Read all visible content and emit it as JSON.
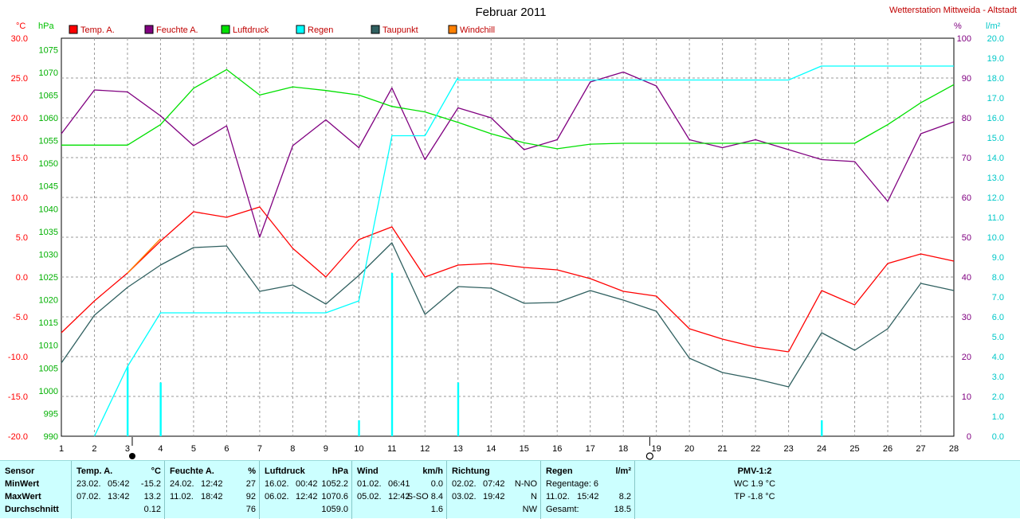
{
  "chart_data": {
    "type": "line",
    "title": "Februar 2011",
    "station": "Wetterstation Mittweida - Altstadt",
    "x": [
      1,
      2,
      3,
      4,
      5,
      6,
      7,
      8,
      9,
      10,
      11,
      12,
      13,
      14,
      15,
      16,
      17,
      18,
      19,
      20,
      21,
      22,
      23,
      24,
      25,
      26,
      27,
      28
    ],
    "axes": {
      "temp": {
        "unit": "°C",
        "range": [
          -20,
          30
        ],
        "ticks": [
          "30.0",
          "25.0",
          "20.0",
          "15.0",
          "10.0",
          "5.0",
          "0.0",
          "-5.0",
          "-10.0",
          "-15.0",
          "-20.0"
        ]
      },
      "pressure": {
        "unit": "hPa",
        "range": [
          990,
          1077.5
        ],
        "ticks": [
          "1075",
          "1070",
          "1065",
          "1060",
          "1055",
          "1050",
          "1045",
          "1040",
          "1035",
          "1030",
          "1025",
          "1020",
          "1015",
          "1010",
          "1005",
          "1000",
          "995",
          "990"
        ]
      },
      "humidity": {
        "unit": "%",
        "range": [
          0,
          100
        ],
        "ticks": [
          "100",
          "90",
          "80",
          "70",
          "60",
          "50",
          "40",
          "30",
          "20",
          "10",
          "0"
        ]
      },
      "rain": {
        "unit": "l/m²",
        "range": [
          0,
          20
        ],
        "ticks": [
          "20.0",
          "19.0",
          "18.0",
          "17.0",
          "16.0",
          "15.0",
          "14.0",
          "13.0",
          "12.0",
          "11.0",
          "10.0",
          "9.0",
          "8.0",
          "7.0",
          "6.0",
          "5.0",
          "4.0",
          "3.0",
          "2.0",
          "1.0",
          "0.0"
        ]
      }
    },
    "legend": [
      {
        "name": "Temp. A.",
        "color": "#ff0000"
      },
      {
        "name": "Feuchte A.",
        "color": "#800080"
      },
      {
        "name": "Luftdruck",
        "color": "#00e000"
      },
      {
        "name": "Regen",
        "color": "#00ffff"
      },
      {
        "name": "Taupunkt",
        "color": "#306060"
      },
      {
        "name": "Windchill",
        "color": "#ff8000"
      }
    ],
    "series": [
      {
        "name": "Temp. A.",
        "axis": "temp",
        "color": "#ff0000",
        "values": [
          -7.0,
          -3.0,
          0.5,
          4.5,
          8.2,
          7.5,
          8.8,
          3.6,
          0.0,
          4.7,
          6.3,
          0.0,
          1.5,
          1.7,
          1.2,
          0.9,
          -0.2,
          -1.8,
          -2.4,
          -6.5,
          -7.8,
          -8.8,
          -9.4,
          -1.7,
          -3.5,
          1.7,
          2.9,
          2.0
        ]
      },
      {
        "name": "Windchill",
        "axis": "temp",
        "color": "#ff8000",
        "values": [
          null,
          null,
          0.5,
          4.8,
          null,
          null,
          null,
          null,
          null,
          null,
          null,
          null,
          null,
          null,
          null,
          null,
          null,
          null,
          null,
          null,
          null,
          null,
          null,
          null,
          null,
          null,
          null,
          null
        ]
      },
      {
        "name": "Taupunkt",
        "axis": "temp",
        "color": "#306060",
        "values": [
          -10.8,
          -4.8,
          -1.3,
          1.5,
          3.7,
          3.9,
          -1.8,
          -1.0,
          -3.4,
          0.2,
          4.3,
          -4.7,
          -1.2,
          -1.4,
          -3.3,
          -3.2,
          -1.7,
          -2.9,
          -4.3,
          -10.2,
          -12.0,
          -12.8,
          -13.8,
          -7.0,
          -9.2,
          -6.5,
          -0.8,
          -1.7
        ]
      },
      {
        "name": "Feuchte A.",
        "axis": "humidity",
        "color": "#800080",
        "values": [
          76,
          87,
          86.5,
          80.5,
          73,
          78,
          50,
          73,
          79.5,
          72.5,
          87.5,
          69.5,
          82.5,
          80,
          72,
          74.5,
          89,
          91.5,
          88,
          74.5,
          72.5,
          74.5,
          72,
          69.5,
          69,
          59,
          76,
          79
        ]
      },
      {
        "name": "Luftdruck",
        "axis": "pressure",
        "color": "#00e000",
        "values": [
          1054.0,
          1054.0,
          1054.0,
          1058.5,
          1066.5,
          1070.6,
          1065.0,
          1066.8,
          1066.0,
          1065.0,
          1062.5,
          1061.3,
          1059.0,
          1056.5,
          1054.5,
          1053.2,
          1054.2,
          1054.4,
          1054.4,
          1054.4,
          1054.4,
          1054.4,
          1054.4,
          1054.4,
          1054.4,
          1058.5,
          1063.3,
          1067.3
        ]
      },
      {
        "name": "Regen",
        "axis": "rain",
        "color": "#00ffff",
        "x": [
          2,
          3,
          4,
          5,
          6,
          7,
          8,
          9,
          10,
          10.99,
          11,
          12,
          12.99,
          13,
          14,
          15,
          16,
          17,
          18,
          19,
          20,
          21,
          22,
          23,
          23.99,
          24,
          25,
          26,
          27,
          28
        ],
        "values": [
          0.0,
          3.5,
          6.2,
          6.2,
          6.2,
          6.2,
          6.2,
          6.2,
          6.8,
          15.0,
          15.1,
          15.1,
          18.0,
          17.9,
          17.9,
          17.9,
          17.9,
          17.9,
          17.9,
          17.9,
          17.9,
          17.9,
          17.9,
          17.9,
          18.6,
          18.6,
          18.6,
          18.6,
          18.6,
          18.6
        ]
      }
    ],
    "rain_bars": {
      "x": [
        3,
        4,
        10,
        11,
        13,
        24
      ],
      "values": [
        3.5,
        2.7,
        0.8,
        8.2,
        2.7,
        0.8
      ]
    },
    "x_markers": {
      "sun": 3,
      "moon": 18.8
    }
  },
  "stats": {
    "sensor": {
      "title": "Sensor",
      "rows": [
        "MinWert",
        "MaxWert",
        "Durchschnitt"
      ]
    },
    "temp": {
      "title": "Temp. A.",
      "unit": "°C",
      "min": {
        "date": "23.02.",
        "time": "05:42",
        "val": "-15.2"
      },
      "max": {
        "date": "07.02.",
        "time": "13:42",
        "val": "13.2"
      },
      "avg": "0.12"
    },
    "humidity": {
      "title": "Feuchte A.",
      "unit": "%",
      "min": {
        "date": "24.02.",
        "time": "12:42",
        "val": "27"
      },
      "max": {
        "date": "11.02.",
        "time": "18:42",
        "val": "92"
      },
      "avg": "76"
    },
    "pressure": {
      "title": "Luftdruck",
      "unit": "hPa",
      "min": {
        "date": "16.02.",
        "time": "00:42",
        "val": "1052.2"
      },
      "max": {
        "date": "06.02.",
        "time": "12:42",
        "val": "1070.6"
      },
      "avg": "1059.0"
    },
    "wind": {
      "title": "Wind",
      "unit": "km/h",
      "min": {
        "date": "01.02.",
        "time": "06:41",
        "val": "0.0"
      },
      "max": {
        "date": "05.02.",
        "time": "12:42",
        "val": "S-SO 8.4"
      },
      "avg": "1.6"
    },
    "direction": {
      "title": "Richtung",
      "min": {
        "date": "02.02.",
        "time": "07:42",
        "val": "N-NO"
      },
      "max": {
        "date": "03.02.",
        "time": "19:42",
        "val": "N"
      },
      "avg": "NW"
    },
    "rain": {
      "title": "Regen",
      "unit": "l/m²",
      "days_label": "Regentage: 6",
      "max": {
        "date": "11.02.",
        "time": "15:42",
        "val": "8.2"
      },
      "total_label": "Gesamt:",
      "total": "18.5"
    },
    "pmv": {
      "title": "PMV-1:2",
      "wc": "WC 1.9 °C",
      "tp": "TP -1.8 °C"
    }
  }
}
